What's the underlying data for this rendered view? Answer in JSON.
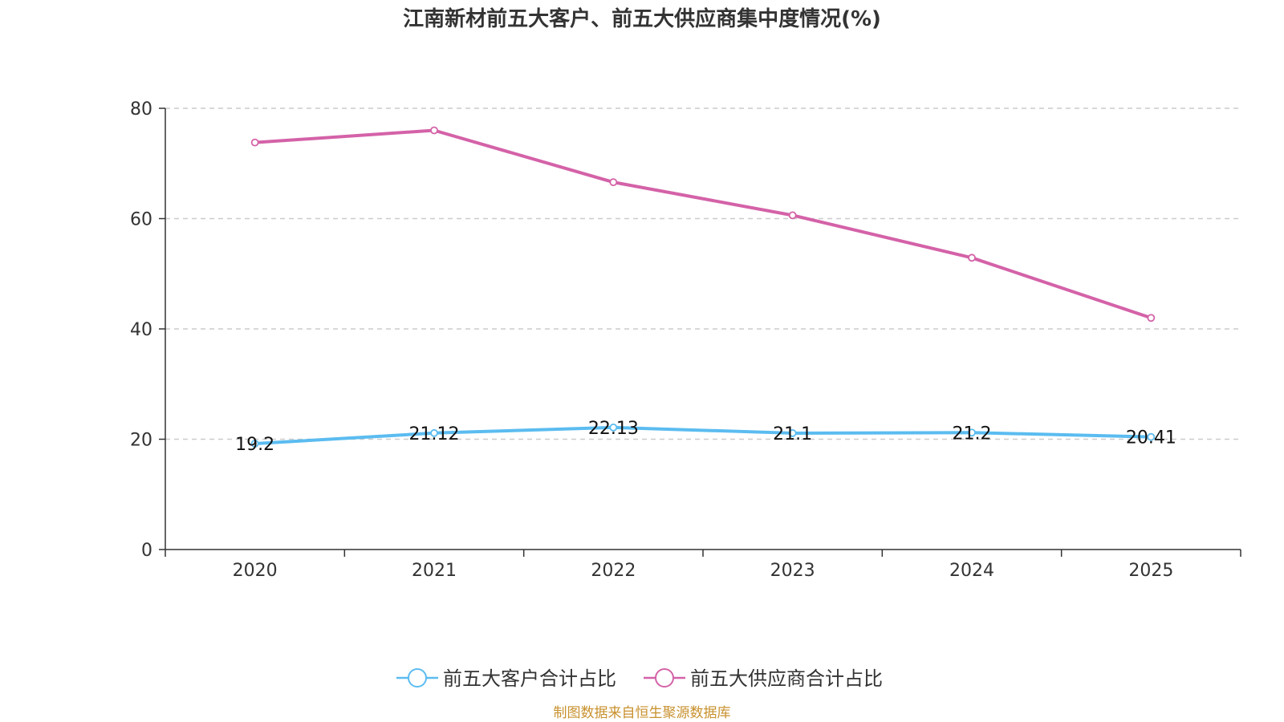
{
  "chart_data": {
    "type": "line",
    "title": "江南新材前五大客户、前五大供应商集中度情况(%)",
    "categories": [
      "2020",
      "2021",
      "2022",
      "2023",
      "2024",
      "2025"
    ],
    "ylim": [
      0,
      80
    ],
    "yticks": [
      0,
      20,
      40,
      60,
      80
    ],
    "grid": true,
    "legend_position": "bottom-center",
    "series": [
      {
        "name": "前五大客户合计占比",
        "color": "#5bbcf0",
        "values": [
          19.2,
          21.12,
          22.13,
          21.1,
          21.2,
          20.41
        ],
        "labels": [
          "19.2",
          "21.12",
          "22.13",
          "21.1",
          "21.2",
          "20.41"
        ],
        "show_labels": true
      },
      {
        "name": "前五大供应商合计占比",
        "color": "#d462a8",
        "values": [
          73.8,
          76.0,
          66.6,
          60.6,
          52.9,
          42.0
        ],
        "show_labels": false
      }
    ]
  },
  "footer": {
    "source": "制图数据来自恒生聚源数据库"
  }
}
